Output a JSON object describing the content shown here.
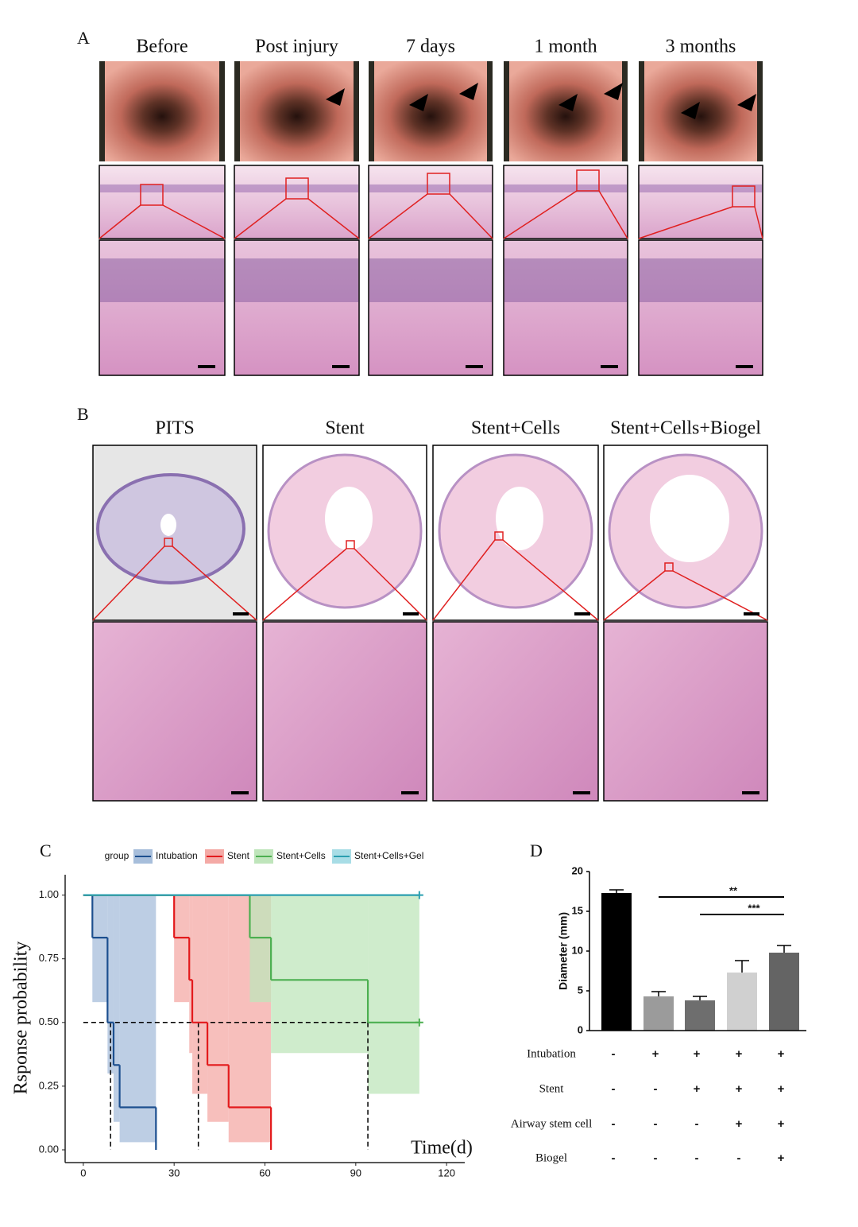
{
  "panel_a": {
    "label": "A",
    "columns": [
      "Before",
      "Post injury",
      "7 days",
      "1 month",
      "3 months"
    ]
  },
  "panel_b": {
    "label": "B",
    "columns": [
      "PITS",
      "Stent",
      "Stent+Cells",
      "Stent+Cells+Biogel"
    ]
  },
  "chart_data": [
    {
      "type": "step",
      "panel_label": "C",
      "legend_title": "group",
      "x_label": "Time(d)",
      "y_label": "Rsponse probability",
      "xlim": [
        -6,
        126
      ],
      "ylim": [
        -0.05,
        1.08
      ],
      "xticks": [
        0,
        30,
        60,
        90,
        120
      ],
      "yticks": [
        {
          "value": 0,
          "label": "0.00"
        },
        {
          "value": 0.25,
          "label": "0.25"
        },
        {
          "value": 0.5,
          "label": "0.50"
        },
        {
          "value": 0.75,
          "label": "0.75"
        },
        {
          "value": 1,
          "label": "1.00"
        }
      ],
      "reference_y": 0.5,
      "medians": [
        9,
        38,
        94
      ],
      "series": [
        {
          "name": "Intubation",
          "color": "#1c4f8f",
          "band_color": "#a7bedb",
          "x": [
            0,
            3,
            8,
            10,
            12,
            24
          ],
          "values": [
            1,
            0.833,
            0.5,
            0.333,
            0.167,
            0
          ],
          "lower": [
            null,
            0.58,
            0.3,
            0.11,
            0.03,
            null
          ],
          "upper": [
            null,
            1,
            1,
            1,
            1,
            null
          ]
        },
        {
          "name": "Stent",
          "color": "#e31a1c",
          "band_color": "#f4aaa6",
          "x": [
            0,
            30,
            35,
            36,
            41,
            48,
            62
          ],
          "values": [
            1,
            0.833,
            0.667,
            0.5,
            0.333,
            0.167,
            0
          ],
          "lower": [
            null,
            0.58,
            0.38,
            0.22,
            0.11,
            0.03,
            null
          ],
          "upper": [
            null,
            1,
            1,
            1,
            1,
            1,
            null
          ]
        },
        {
          "name": "Stent+Cells",
          "color": "#4caf50",
          "band_color": "#bfe5bb",
          "x": [
            0,
            55,
            62,
            94
          ],
          "values": [
            1,
            0.833,
            0.667,
            0.5
          ],
          "lower": [
            null,
            0.58,
            0.38,
            0.22
          ],
          "upper": [
            null,
            1,
            1,
            1
          ],
          "censor_x": 111
        },
        {
          "name": "Stent+Cells+Gel",
          "color": "#2a9fb0",
          "band_color": "#a8dde6",
          "x": [
            0
          ],
          "values": [
            1
          ],
          "lower": [
            null
          ],
          "upper": [
            null
          ],
          "censor_x": 111
        }
      ]
    },
    {
      "type": "bar",
      "panel_label": "D",
      "y_label": "Diameter (mm)",
      "ylim": [
        0,
        20
      ],
      "yticks": [
        0,
        5,
        10,
        15,
        20
      ],
      "values": [
        17.3,
        4.3,
        3.8,
        7.3,
        9.8
      ],
      "errors": [
        0.4,
        0.6,
        0.5,
        1.5,
        0.9
      ],
      "colors": [
        "#000000",
        "#9b9b9b",
        "#6e6e6e",
        "#d0d0d0",
        "#646464"
      ],
      "significance": [
        {
          "label": "**",
          "from": 1,
          "to": 4
        },
        {
          "label": "***",
          "from": 2,
          "to": 4
        }
      ],
      "table": {
        "rows": [
          {
            "label": "Intubation",
            "cells": [
              "-",
              "+",
              "+",
              "+",
              "+"
            ]
          },
          {
            "label": "Stent",
            "cells": [
              "-",
              "-",
              "+",
              "+",
              "+"
            ]
          },
          {
            "label": "Airway stem cell",
            "cells": [
              "-",
              "-",
              "-",
              "+",
              "+"
            ]
          },
          {
            "label": "Biogel",
            "cells": [
              "-",
              "-",
              "-",
              "-",
              "+"
            ]
          }
        ]
      }
    }
  ]
}
